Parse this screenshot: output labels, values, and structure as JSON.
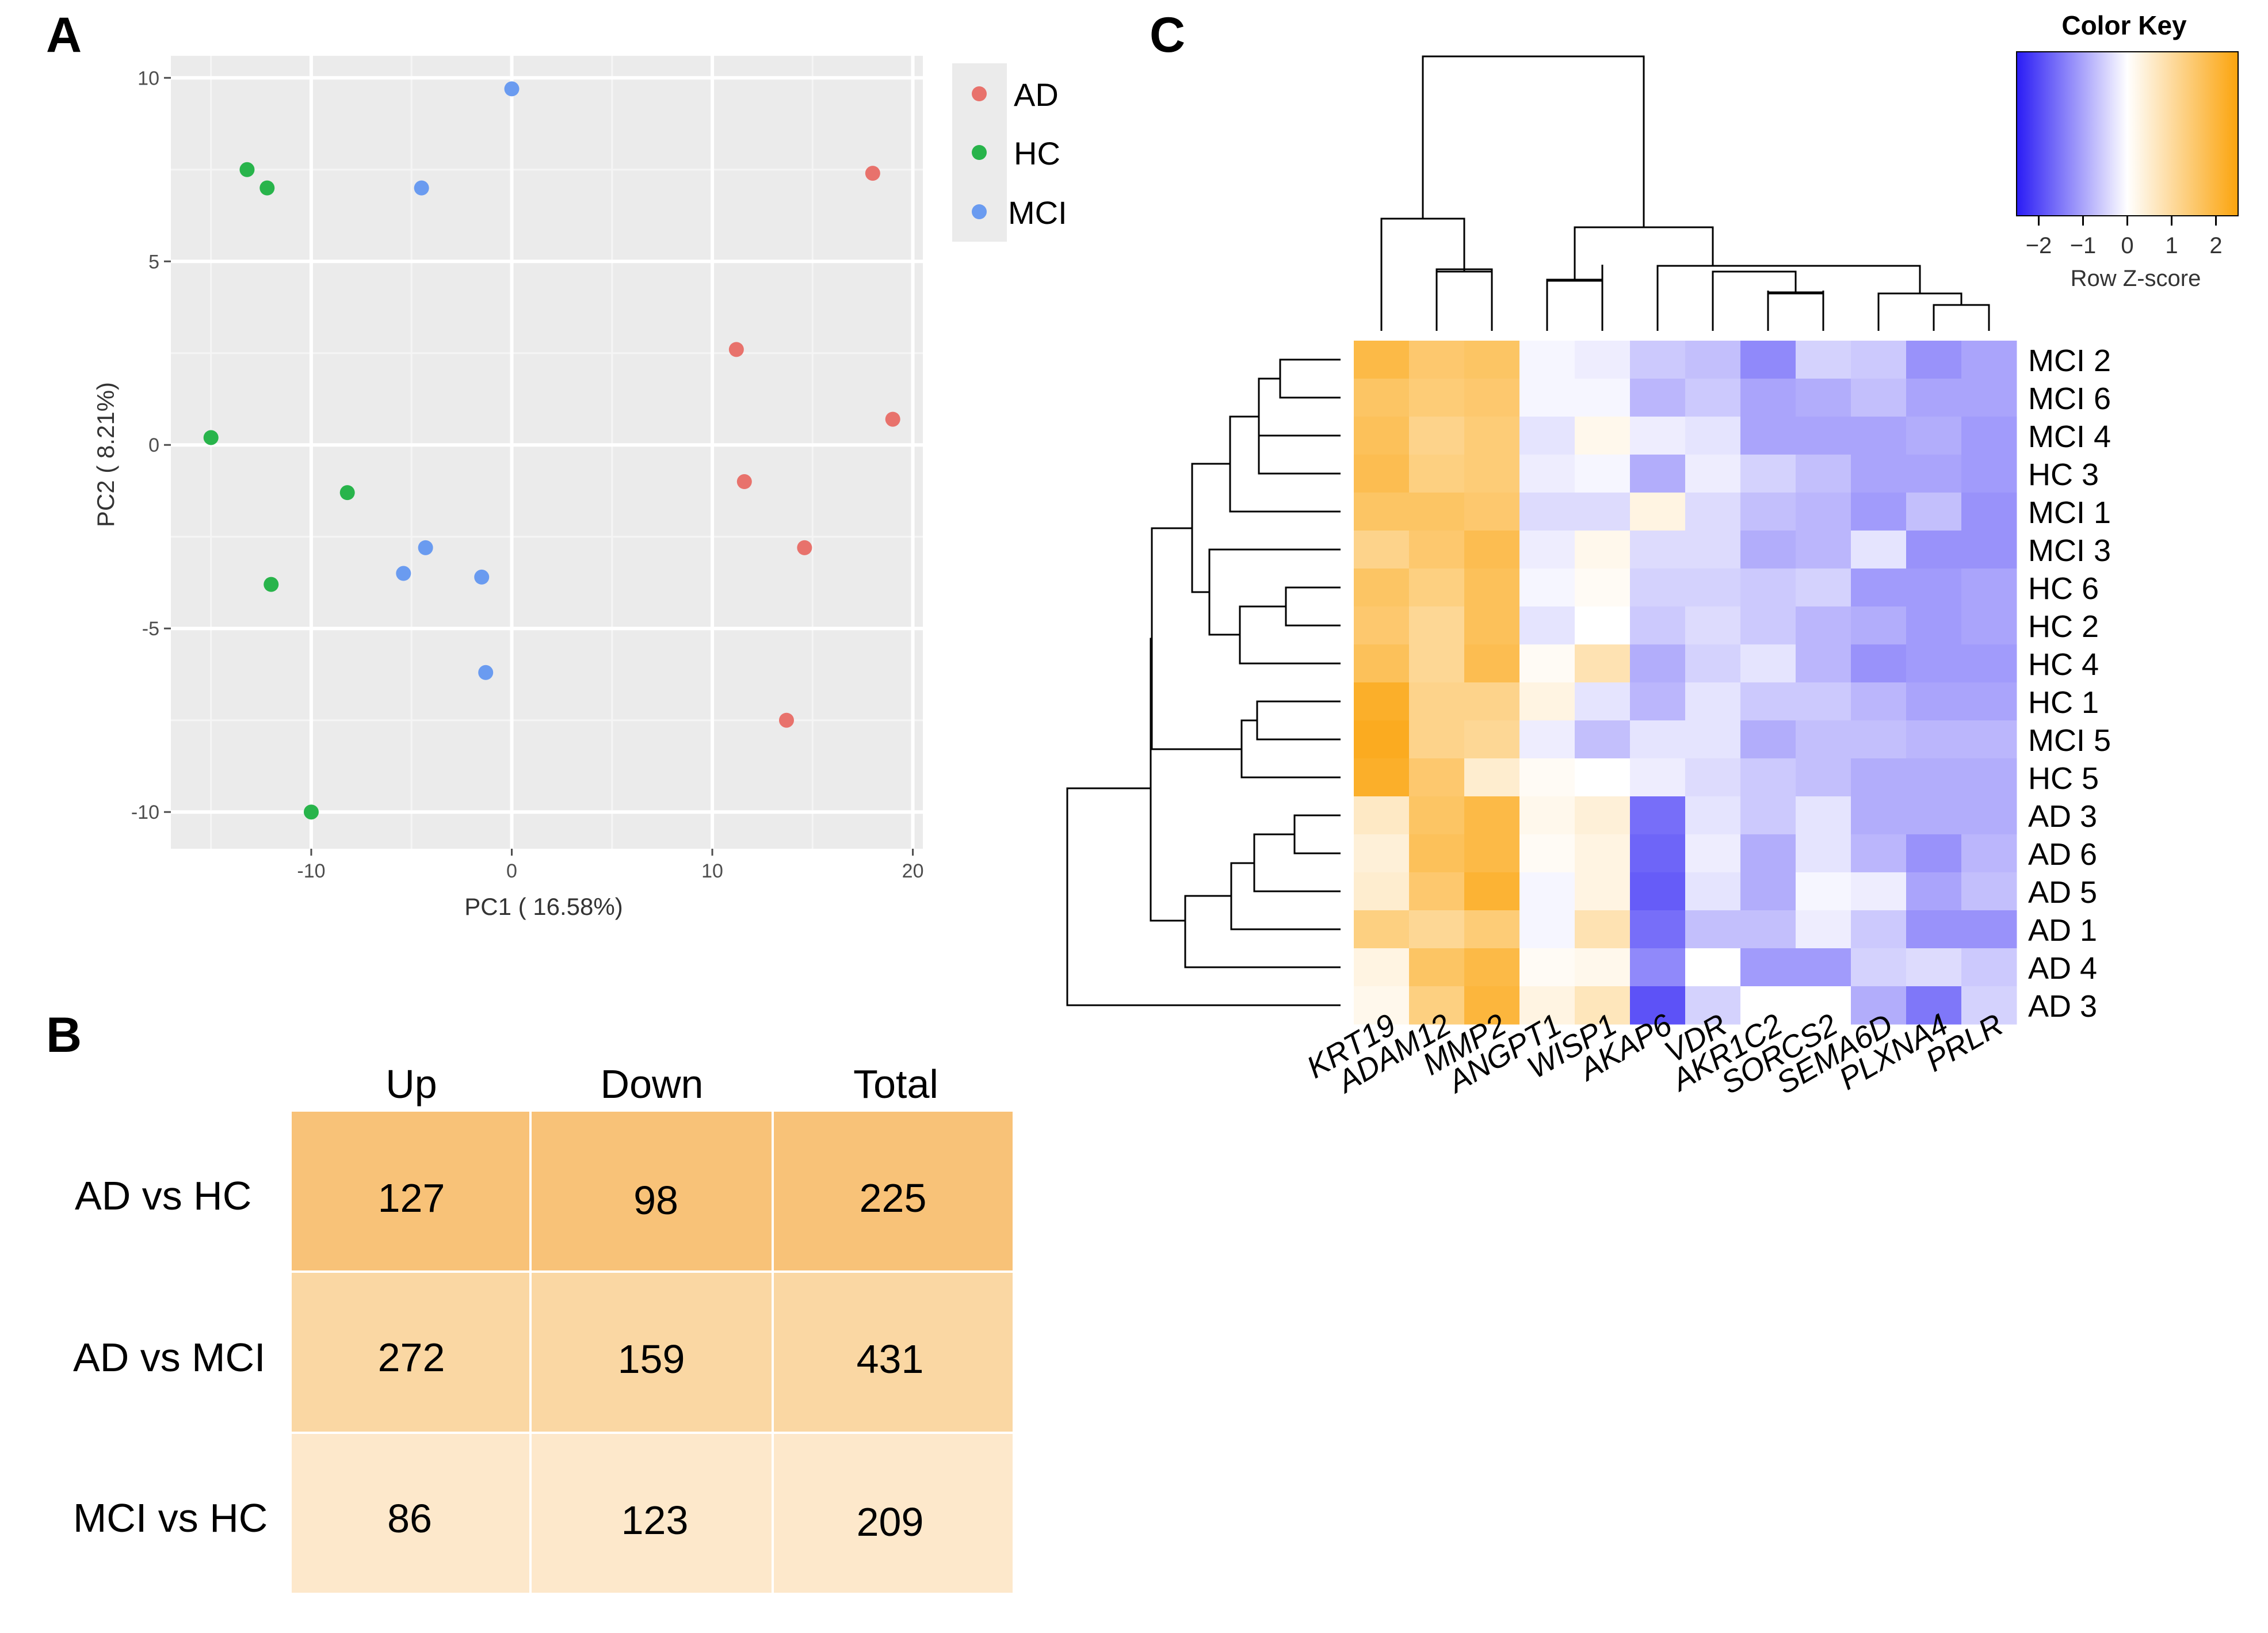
{
  "panels": {
    "a": "A",
    "b": "B",
    "c": "C"
  },
  "chart_data": [
    {
      "type": "scatter",
      "panel": "A",
      "xlabel": "PC1 ( 16.58%)",
      "ylabel": "PC2 ( 8.21%)",
      "xlim": [
        -17,
        20.5
      ],
      "ylim": [
        -11,
        10.6
      ],
      "xticks": [
        -10,
        0,
        10,
        20
      ],
      "xtick_labels": [
        "-10",
        "0",
        "10",
        "20"
      ],
      "yticks": [
        -10,
        -5,
        0,
        5,
        10
      ],
      "ytick_labels": [
        "-10",
        "-5",
        "0",
        "5",
        "10"
      ],
      "grid": true,
      "legend": {
        "position": "right",
        "entries": [
          "AD",
          "HC",
          "MCI"
        ]
      },
      "colors": {
        "AD": "#e8726c",
        "HC": "#28b44b",
        "MCI": "#6a9bf0"
      },
      "series": [
        {
          "name": "AD",
          "points": [
            [
              18,
              7.4
            ],
            [
              11.2,
              2.6
            ],
            [
              19,
              0.7
            ],
            [
              11.6,
              -1
            ],
            [
              14.6,
              -2.8
            ],
            [
              13.7,
              -7.5
            ]
          ]
        },
        {
          "name": "HC",
          "points": [
            [
              -13.2,
              7.5
            ],
            [
              -12.2,
              7
            ],
            [
              -15,
              0.2
            ],
            [
              -8.2,
              -1.3
            ],
            [
              -12,
              -3.8
            ],
            [
              -10,
              -10
            ]
          ]
        },
        {
          "name": "MCI",
          "points": [
            [
              0,
              9.7
            ],
            [
              -4.5,
              7
            ],
            [
              -4.3,
              -2.8
            ],
            [
              -5.4,
              -3.5
            ],
            [
              -1.5,
              -3.6
            ],
            [
              -1.3,
              -6.2
            ]
          ]
        }
      ]
    },
    {
      "type": "table",
      "panel": "B",
      "columns": [
        "Up",
        "Down",
        "Total"
      ],
      "rows": [
        {
          "label": "AD vs HC",
          "values": [
            "127",
            "98",
            "225"
          ],
          "color": "#f8c278"
        },
        {
          "label": "AD vs MCI",
          "values": [
            "272",
            "159",
            "431"
          ],
          "color": "#fad7a3"
        },
        {
          "label": "MCI vs HC",
          "values": [
            "86",
            "123",
            "209"
          ],
          "color": "#fde8cb"
        }
      ]
    },
    {
      "type": "heatmap",
      "panel": "C",
      "key_title": "Color Key",
      "key_label": "Row Z-score",
      "key_ticks": [
        -2,
        -1,
        0,
        1,
        2
      ],
      "key_tick_labels": [
        "−2",
        "−1",
        "0",
        "1",
        "2"
      ],
      "color_low": "#2a1cf5",
      "color_mid": "#ffffff",
      "color_high": "#fba40d",
      "columns": [
        "KRT19",
        "ADAM12",
        "MMP2",
        "ANGPT1",
        "WISP1",
        "AKAP6",
        "VDR",
        "AKR1C2",
        "SORCS2",
        "SEMA6D",
        "PLXNA4",
        "PRLR"
      ],
      "rows": [
        "MCI 2",
        "MCI 6",
        "MCI 4",
        "HC 3",
        "MCI 1",
        "MCI 3",
        "HC 6",
        "HC 2",
        "HC 4",
        "HC 1",
        "MCI 5",
        "HC 5",
        "AD 3",
        "AD 6",
        "AD 5",
        "AD 1",
        "AD 4",
        "AD 3"
      ],
      "values": [
        [
          1.9,
          1.5,
          1.6,
          -0.1,
          -0.2,
          -0.6,
          -0.7,
          -1.3,
          -0.5,
          -0.6,
          -1.2,
          -1.0
        ],
        [
          1.6,
          1.4,
          1.5,
          -0.1,
          -0.1,
          -0.8,
          -0.6,
          -1.0,
          -0.9,
          -0.7,
          -1.0,
          -1.0
        ],
        [
          1.7,
          1.2,
          1.4,
          -0.3,
          0.2,
          -0.2,
          -0.3,
          -1.0,
          -1.0,
          -1.0,
          -0.9,
          -1.1
        ],
        [
          1.8,
          1.3,
          1.4,
          -0.2,
          -0.1,
          -0.9,
          -0.2,
          -0.5,
          -0.7,
          -1.0,
          -1.0,
          -1.1
        ],
        [
          1.6,
          1.6,
          1.5,
          -0.4,
          -0.4,
          0.3,
          -0.4,
          -0.7,
          -0.8,
          -1.1,
          -0.7,
          -1.2
        ],
        [
          1.2,
          1.5,
          1.8,
          -0.2,
          0.2,
          -0.4,
          -0.4,
          -0.9,
          -0.8,
          -0.3,
          -1.2,
          -1.2
        ],
        [
          1.6,
          1.3,
          1.7,
          -0.1,
          0.1,
          -0.5,
          -0.5,
          -0.6,
          -0.5,
          -1.1,
          -1.1,
          -1.0
        ],
        [
          1.5,
          1.1,
          1.7,
          -0.3,
          0.0,
          -0.6,
          -0.4,
          -0.6,
          -0.8,
          -0.9,
          -1.1,
          -1.0
        ],
        [
          1.7,
          1.1,
          1.8,
          0.1,
          0.8,
          -0.9,
          -0.5,
          -0.3,
          -0.8,
          -1.2,
          -1.1,
          -1.1
        ],
        [
          2.2,
          1.2,
          1.2,
          0.3,
          -0.3,
          -0.8,
          -0.3,
          -0.6,
          -0.6,
          -0.8,
          -1.0,
          -1.0
        ],
        [
          2.3,
          1.2,
          1.1,
          -0.2,
          -0.7,
          -0.3,
          -0.3,
          -0.9,
          -0.7,
          -0.7,
          -0.8,
          -0.8
        ],
        [
          2.2,
          1.5,
          0.5,
          0.1,
          0.0,
          -0.2,
          -0.4,
          -0.6,
          -0.7,
          -0.9,
          -0.9,
          -0.9
        ],
        [
          0.6,
          1.6,
          1.9,
          0.2,
          0.4,
          -1.6,
          -0.3,
          -0.6,
          -0.3,
          -0.9,
          -0.9,
          -0.9
        ],
        [
          0.4,
          1.7,
          1.9,
          0.1,
          0.3,
          -1.7,
          -0.2,
          -0.9,
          -0.3,
          -0.8,
          -1.2,
          -0.8
        ],
        [
          0.5,
          1.5,
          2.1,
          -0.1,
          0.3,
          -1.8,
          -0.3,
          -0.9,
          -0.1,
          -0.2,
          -1.0,
          -0.7
        ],
        [
          1.3,
          1.1,
          1.4,
          -0.1,
          0.8,
          -1.6,
          -0.7,
          -0.7,
          -0.2,
          -0.6,
          -1.2,
          -1.2
        ],
        [
          0.3,
          1.6,
          1.9,
          0.1,
          0.2,
          -1.3,
          0.0,
          -1.1,
          -1.1,
          -0.5,
          -0.4,
          -0.6
        ],
        [
          0.2,
          1.3,
          2.0,
          0.3,
          0.7,
          -1.9,
          -0.5,
          0.0,
          0.0,
          -0.9,
          -1.5,
          -0.5
        ]
      ]
    }
  ]
}
